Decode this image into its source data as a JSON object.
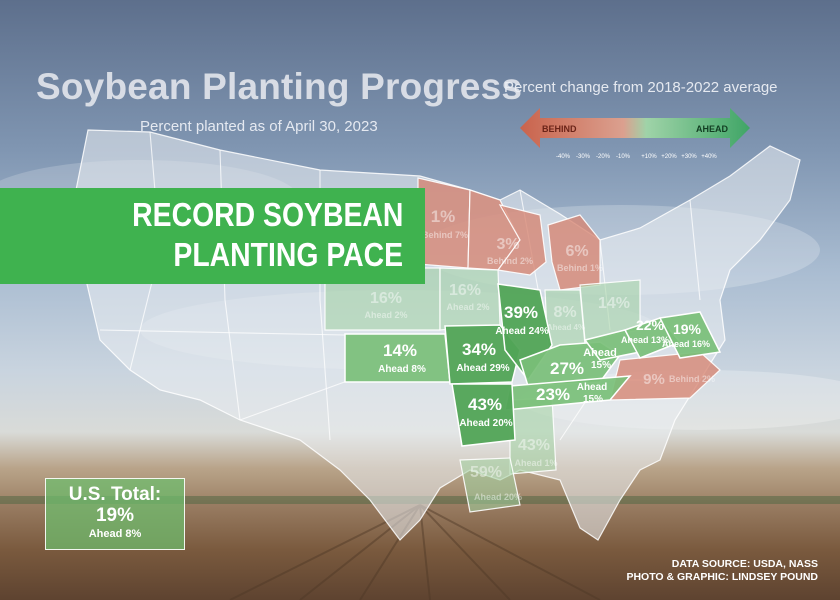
{
  "title": "Soybean Planting Progress",
  "subtitle": "Percent planted as of April 30, 2023",
  "legend": {
    "title": "Percent change from 2018-2022 average",
    "behind_label": "BEHIND",
    "ahead_label": "AHEAD",
    "ticks": [
      "-40%",
      "-30%",
      "-20%",
      "-10%",
      "+10%",
      "+20%",
      "+30%",
      "+40%"
    ],
    "behind_color": "#c9634c",
    "ahead_color": "#3fa566"
  },
  "banner": {
    "line1": "RECORD SOYBEAN",
    "line2": "PLANTING PACE",
    "color": "#3fb24f"
  },
  "us_total": {
    "title": "U.S. Total:",
    "pct": "19%",
    "change": "Ahead 8%"
  },
  "states": {
    "ND": {
      "pct": "1%",
      "change": "Behind 7%"
    },
    "MN": {
      "pct": "",
      "change": ""
    },
    "WI": {
      "pct": "3%",
      "change": "Behind 2%"
    },
    "MI": {
      "pct": "6%",
      "change": "Behind 1%"
    },
    "SD": {
      "pct": "16%",
      "change": "Ahead 2%"
    },
    "IA": {
      "pct": "16%",
      "change": "Ahead 2%"
    },
    "IN": {
      "pct": "8%",
      "change": "Ahead 4%"
    },
    "OH": {
      "pct": "14%",
      "change": ""
    },
    "KS": {
      "pct": "14%",
      "change": "Ahead 8%"
    },
    "MO": {
      "pct": "34%",
      "change": "Ahead 29%"
    },
    "IL": {
      "pct": "39%",
      "change": "Ahead 24%"
    },
    "KY": {
      "pct": "27%",
      "change": ""
    },
    "WV": {
      "pct": "",
      "change": "Ahead 15%"
    },
    "VA": {
      "pct": "22%",
      "change": "Ahead 13%"
    },
    "MD": {
      "pct": "19%",
      "change": "Ahead 16%"
    },
    "TN": {
      "pct": "23%",
      "change": "Ahead 15%"
    },
    "NC": {
      "pct": "9%",
      "change": "Behind 2%"
    },
    "AR": {
      "pct": "43%",
      "change": "Ahead 20%"
    },
    "MS": {
      "pct": "43%",
      "change": "Ahead 1%"
    },
    "LA": {
      "pct": "59%",
      "change": "Ahead 20%"
    }
  },
  "credits": {
    "line1": "DATA SOURCE: USDA, NASS",
    "line2": "PHOTO & GRAPHIC: LINDSEY POUND"
  }
}
